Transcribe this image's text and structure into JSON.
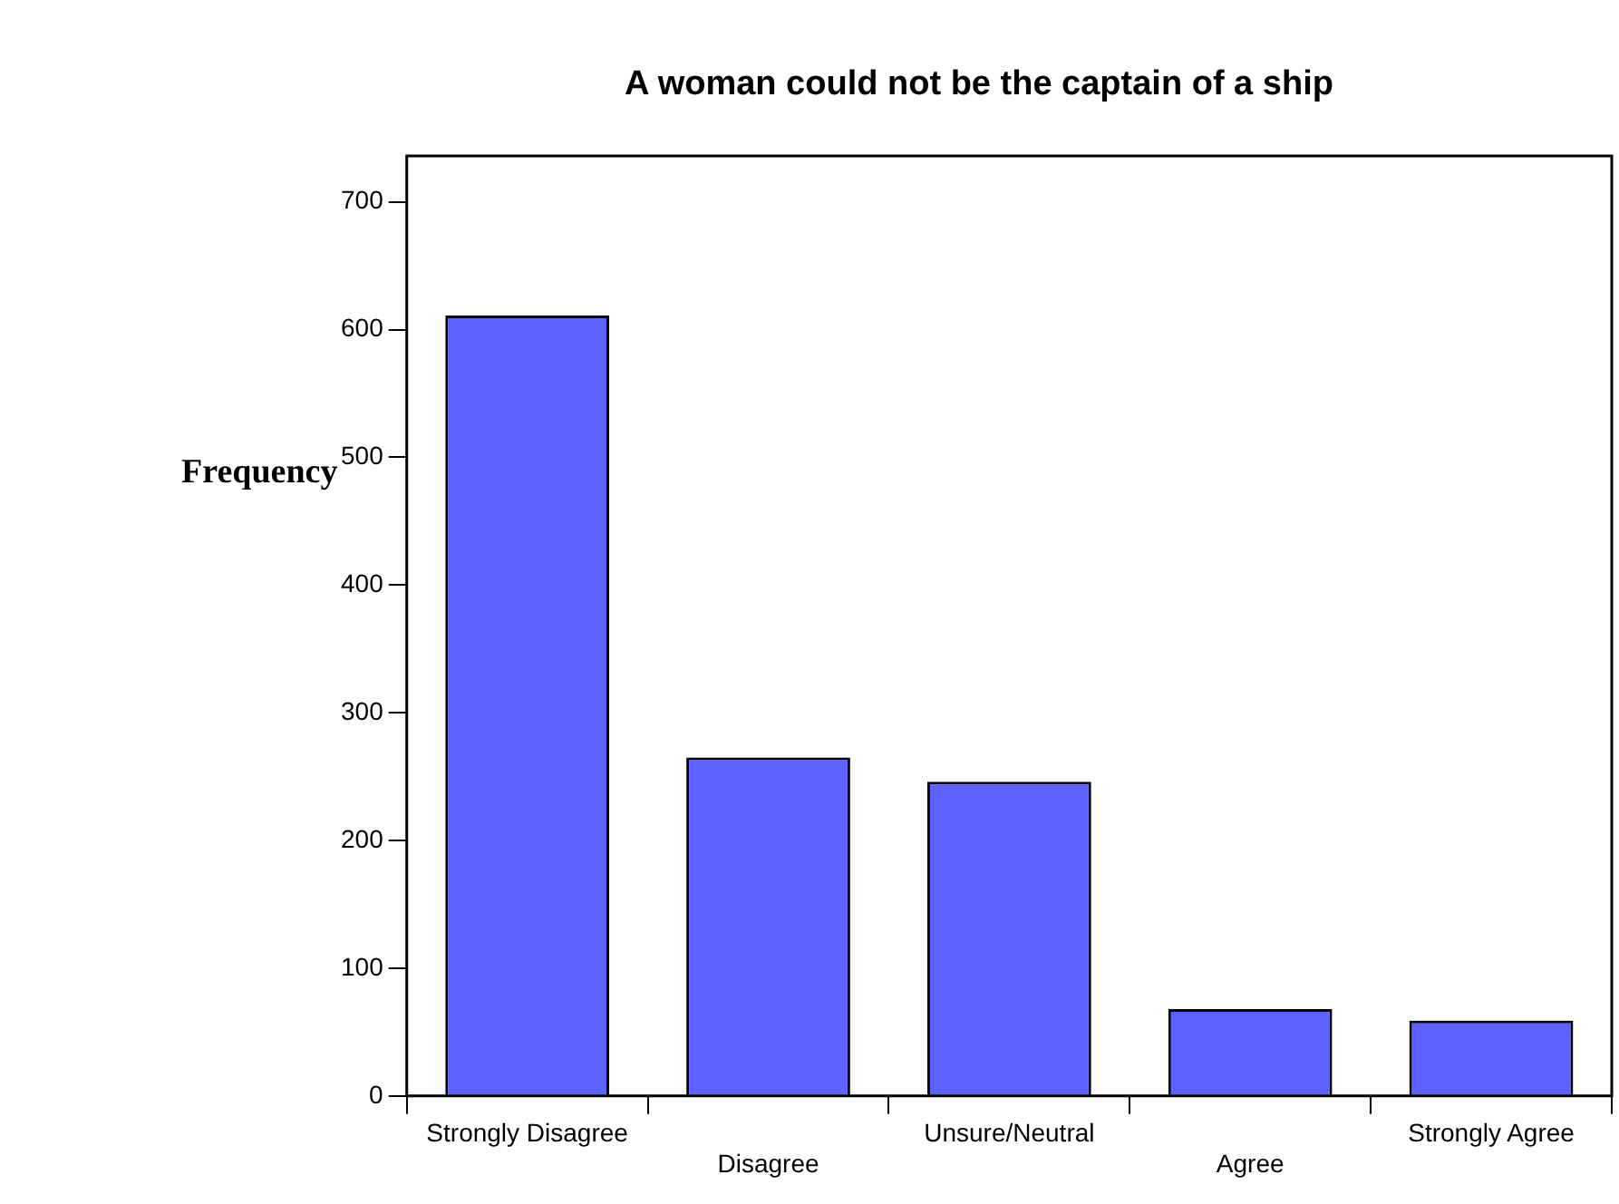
{
  "chart_data": {
    "type": "bar",
    "title": "A woman could not be the captain of a ship",
    "ylabel": "Frequency",
    "categories": [
      "Strongly Disagree",
      "Disagree",
      "Unsure/Neutral",
      "Agree",
      "Strongly Agree"
    ],
    "values": [
      611,
      265,
      246,
      68,
      59
    ],
    "color": "#5c61ff",
    "ylim": [
      0,
      736
    ],
    "yticks": [
      0,
      100,
      200,
      300,
      400,
      500,
      600,
      700
    ],
    "grid": false
  }
}
